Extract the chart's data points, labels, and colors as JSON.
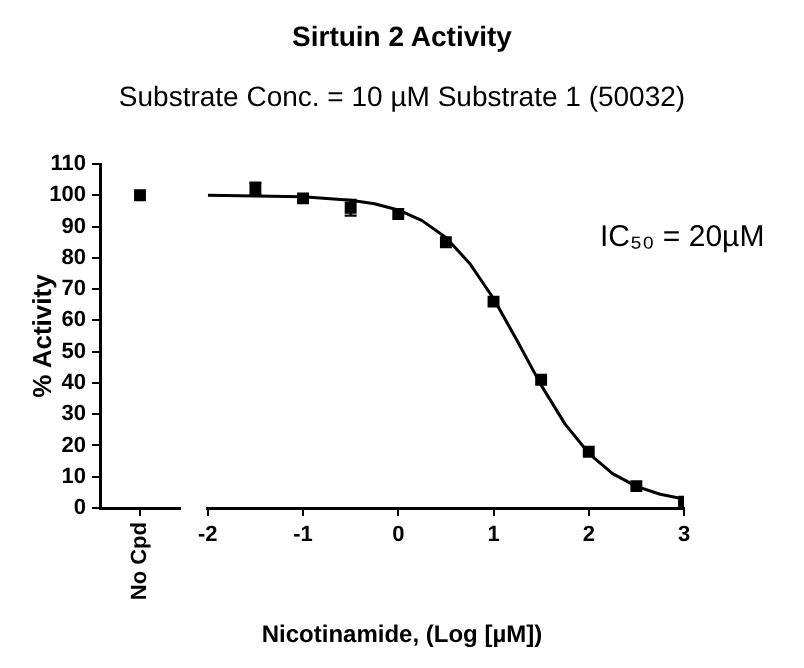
{
  "chart_data": [
    {
      "type": "scatter",
      "ylabel": "% Activity",
      "categories": [
        "No Cpd"
      ],
      "ylim": [
        0,
        110
      ],
      "yticks": [
        0,
        10,
        20,
        30,
        40,
        50,
        60,
        70,
        80,
        90,
        100,
        110
      ],
      "grid": false,
      "legend": false,
      "marker": "square",
      "series": [
        {
          "color": "#000000",
          "values": [
            100
          ]
        }
      ]
    },
    {
      "type": "scatter",
      "title": "Sirtuin 2 Activity",
      "subtitle": "Substrate Conc. = 10 µM Substrate 1 (50032)",
      "xlabel": "Nicotinamide, (Log [µM])",
      "annotations": [
        "IC₅₀ = 20µM"
      ],
      "xlim": [
        -2,
        3
      ],
      "xticks": [
        -2,
        -1,
        0,
        1,
        2,
        3
      ],
      "ylim": [
        0,
        110
      ],
      "tick_labels": "x",
      "grid": false,
      "legend": false,
      "series": [
        {
          "type": "scatter",
          "marker": "square",
          "color": "#000000",
          "x": [
            -1.5,
            -1,
            -0.5,
            0,
            0.5,
            1,
            1.5,
            2,
            2.5,
            3
          ],
          "values": [
            102,
            99,
            96,
            94,
            85,
            66,
            41,
            18,
            7,
            2
          ],
          "errors": [
            2,
            null,
            2.5,
            null,
            null,
            null,
            null,
            null,
            null,
            null
          ]
        },
        {
          "type": "line",
          "marker": "none",
          "line_style": "solid",
          "color": "#000000",
          "x": [
            -2,
            -1.5,
            -1,
            -0.5,
            -0.25,
            0,
            0.25,
            0.5,
            0.75,
            1,
            1.25,
            1.5,
            1.75,
            2,
            2.25,
            2.5,
            2.75,
            3
          ],
          "values": [
            100,
            99.8,
            99.5,
            98.4,
            97.3,
            95.3,
            91.9,
            86.5,
            78.2,
            67,
            53.4,
            39.3,
            26.9,
            17.5,
            11,
            6.9,
            4.4,
            2.9
          ]
        }
      ]
    }
  ]
}
